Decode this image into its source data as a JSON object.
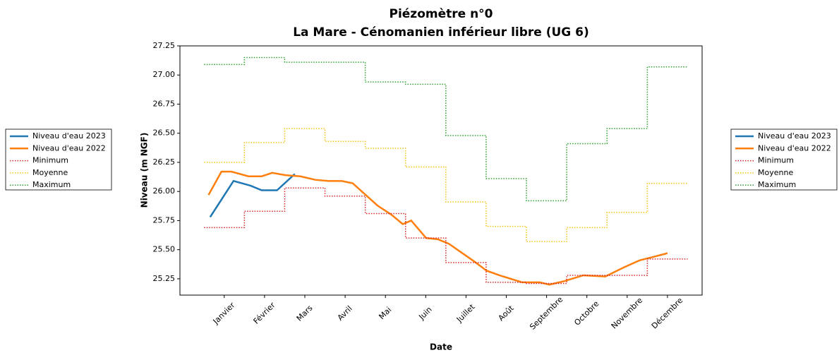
{
  "chart_data": {
    "type": "line",
    "title": "Piézomètre n°0",
    "subtitle": "La Mare - Cénomanien inférieur libre (UG 6)",
    "xlabel": "Date",
    "ylabel": "Niveau (m NGF)",
    "xlim": [
      -0.1,
      12.86
    ],
    "ylim": [
      25.11,
      27.25
    ],
    "xticks": [
      {
        "value": 1,
        "label": "Janvier"
      },
      {
        "value": 2,
        "label": "Février"
      },
      {
        "value": 3,
        "label": "Mars"
      },
      {
        "value": 4,
        "label": "Avril"
      },
      {
        "value": 5,
        "label": "Mai"
      },
      {
        "value": 6,
        "label": "Juin"
      },
      {
        "value": 7,
        "label": "Juillet"
      },
      {
        "value": 8,
        "label": "Août"
      },
      {
        "value": 9,
        "label": "Septembre"
      },
      {
        "value": 10,
        "label": "Octobre"
      },
      {
        "value": 11,
        "label": "Novembre"
      },
      {
        "value": 12,
        "label": "Décembre"
      }
    ],
    "yticks": [
      25.25,
      {
        "value": 25.5,
        "label": "25.50"
      },
      25.75,
      {
        "value": 26,
        "label": "26.00"
      },
      26.25,
      {
        "value": 26.5,
        "label": "26.50"
      },
      26.75,
      {
        "value": 27,
        "label": "27.00"
      },
      27.25
    ],
    "grid": false,
    "legend_positions": [
      "left",
      "right"
    ],
    "series": [
      {
        "name": "Niveau d'eau 2023",
        "color": "#1f77b4",
        "style": "solid",
        "drawstyle": "default",
        "x": [
          0.65,
          1.23,
          1.65,
          1.93,
          2.31,
          2.75
        ],
        "values": [
          25.78,
          26.09,
          26.05,
          26.01,
          26.01,
          26.15
        ]
      },
      {
        "name": "Niveau d'eau 2022",
        "color": "#ff7f0e",
        "style": "solid",
        "drawstyle": "default",
        "x": [
          0.61,
          0.93,
          1.18,
          1.6,
          1.93,
          2.19,
          2.52,
          2.89,
          3.26,
          3.59,
          3.92,
          4.19,
          4.8,
          5.15,
          5.43,
          5.64,
          6.01,
          6.3,
          6.58,
          7.2,
          7.51,
          7.83,
          8.39,
          8.83,
          9.07,
          9.44,
          9.91,
          10.46,
          10.93,
          11.32,
          11.67,
          12.0
        ],
        "values": [
          25.97,
          26.17,
          26.17,
          26.13,
          26.13,
          26.16,
          26.14,
          26.13,
          26.1,
          26.09,
          26.09,
          26.07,
          25.88,
          25.8,
          25.72,
          25.75,
          25.6,
          25.59,
          25.55,
          25.4,
          25.32,
          25.28,
          25.22,
          25.22,
          25.2,
          25.23,
          25.28,
          25.27,
          25.35,
          25.41,
          25.44,
          25.47
        ]
      },
      {
        "name": "Minimum",
        "color": "#d62728",
        "style": "dotted",
        "drawstyle": "steps-mid",
        "x": [
          1,
          2,
          3,
          4,
          5,
          6,
          7,
          8,
          9,
          10,
          11,
          12
        ],
        "values": [
          25.69,
          25.83,
          26.03,
          25.96,
          25.81,
          25.6,
          25.39,
          25.22,
          25.21,
          25.28,
          25.28,
          25.42
        ]
      },
      {
        "name": "Moyenne",
        "color": "#f2c314",
        "style": "dotted",
        "drawstyle": "steps-mid",
        "x": [
          1,
          2,
          3,
          4,
          5,
          6,
          7,
          8,
          9,
          10,
          11,
          12
        ],
        "values": [
          26.25,
          26.42,
          26.54,
          26.43,
          26.37,
          26.21,
          25.91,
          25.7,
          25.57,
          25.69,
          25.82,
          26.07
        ]
      },
      {
        "name": "Maximum",
        "color": "#2ca02c",
        "style": "dotted",
        "drawstyle": "steps-mid",
        "x": [
          1,
          2,
          3,
          4,
          5,
          6,
          7,
          8,
          9,
          10,
          11,
          12
        ],
        "values": [
          27.09,
          27.15,
          27.11,
          27.11,
          26.94,
          26.92,
          26.48,
          26.11,
          25.92,
          26.41,
          26.54,
          27.07
        ]
      }
    ]
  }
}
